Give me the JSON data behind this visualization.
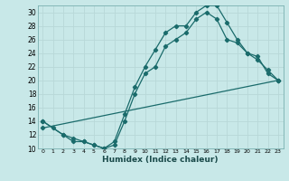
{
  "xlabel": "Humidex (Indice chaleur)",
  "bg_color": "#c8e8e8",
  "grid_color": "#d0e8e8",
  "line_color": "#1a6b6b",
  "xlim": [
    -0.5,
    23.5
  ],
  "ylim": [
    10,
    31
  ],
  "xticks": [
    0,
    1,
    2,
    3,
    4,
    5,
    6,
    7,
    8,
    9,
    10,
    11,
    12,
    13,
    14,
    15,
    16,
    17,
    18,
    19,
    20,
    21,
    22,
    23
  ],
  "yticks": [
    10,
    12,
    14,
    16,
    18,
    20,
    22,
    24,
    26,
    28,
    30
  ],
  "line1_x": [
    0,
    1,
    2,
    3,
    4,
    5,
    6,
    7,
    8,
    9,
    10,
    11,
    12,
    13,
    14,
    15,
    16,
    17,
    18,
    19,
    20,
    21,
    22,
    23
  ],
  "line1_y": [
    14,
    13,
    12,
    11,
    11,
    10.5,
    10,
    11,
    15,
    19,
    22,
    24.5,
    27,
    28,
    28,
    30,
    31,
    31,
    28.5,
    26,
    24,
    23.5,
    21,
    20
  ],
  "line2_x": [
    0,
    2,
    3,
    4,
    5,
    6,
    7,
    8,
    9,
    10,
    11,
    12,
    13,
    14,
    15,
    16,
    17,
    18,
    19,
    20,
    21,
    22,
    23
  ],
  "line2_y": [
    14,
    12,
    11.5,
    11,
    10.5,
    10,
    10.5,
    14,
    18,
    21,
    22,
    25,
    26,
    27,
    29,
    30,
    29,
    26,
    25.5,
    24,
    23,
    21.5,
    20
  ],
  "line3_x": [
    0,
    23
  ],
  "line3_y": [
    13,
    20
  ]
}
